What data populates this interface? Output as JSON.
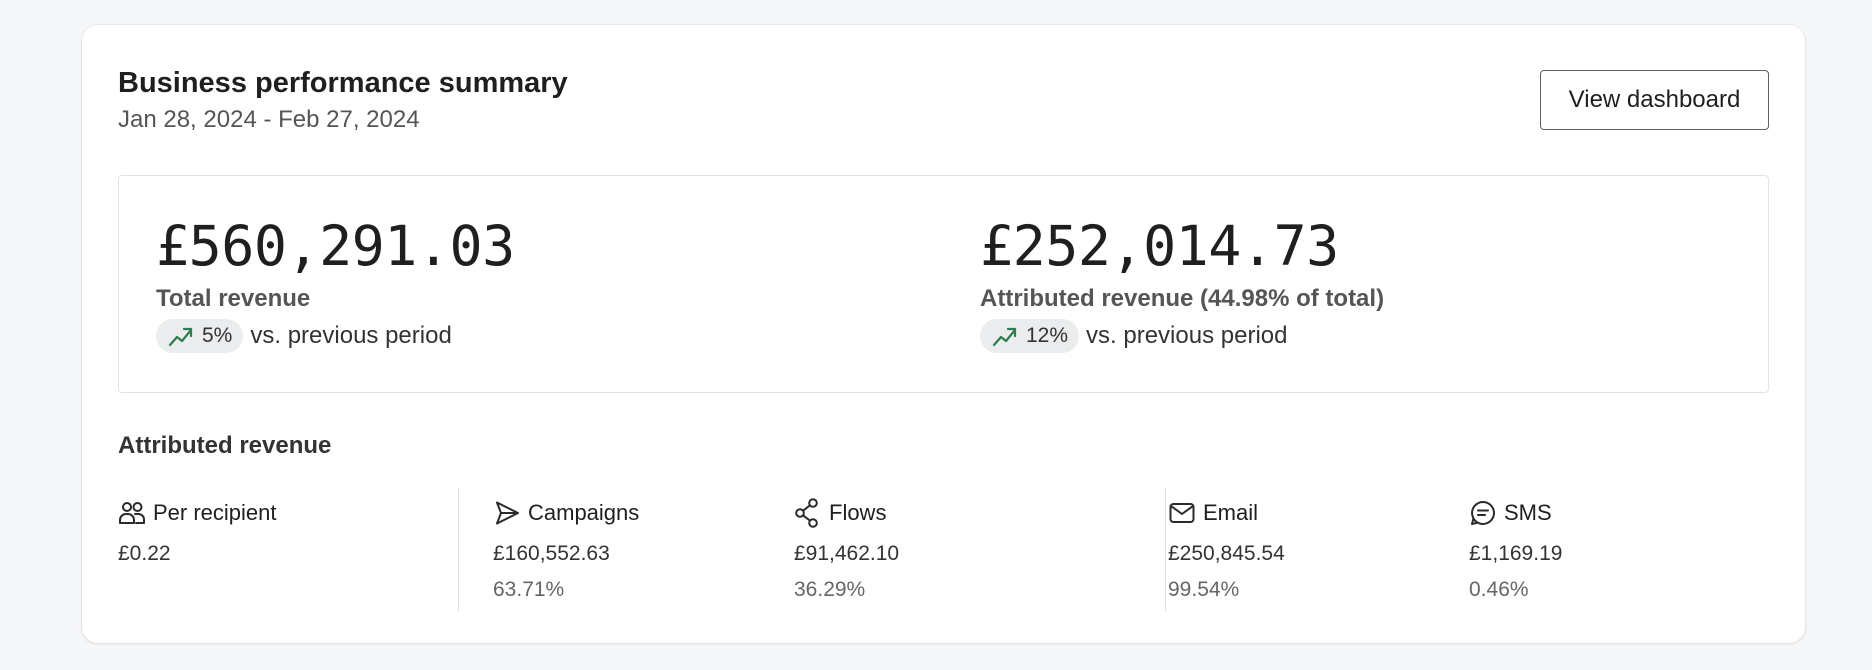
{
  "header": {
    "title": "Business performance summary",
    "date_range": "Jan 28, 2024 - Feb 27, 2024",
    "view_dashboard_label": "View dashboard"
  },
  "kpis": [
    {
      "value": "£560,291.03",
      "label": "Total revenue",
      "trend_icon": "trending-up-icon",
      "trend_value": "5%",
      "trend_text": "vs. previous period"
    },
    {
      "value": "£252,014.73",
      "label": "Attributed revenue (44.98% of total)",
      "trend_icon": "trending-up-icon",
      "trend_value": "12%",
      "trend_text": "vs. previous period"
    }
  ],
  "attributed": {
    "title": "Attributed revenue",
    "metrics": [
      {
        "icon": "users-icon",
        "label": "Per recipient",
        "value": "£0.22",
        "percent": ""
      },
      {
        "icon": "send-icon",
        "label": "Campaigns",
        "value": "£160,552.63",
        "percent": "63.71%"
      },
      {
        "icon": "flows-icon",
        "label": "Flows",
        "value": "£91,462.10",
        "percent": "36.29%"
      },
      {
        "icon": "mail-icon",
        "label": "Email",
        "value": "£250,845.54",
        "percent": "99.54%"
      },
      {
        "icon": "sms-icon",
        "label": "SMS",
        "value": "£1,169.19",
        "percent": "0.46%"
      }
    ]
  },
  "colors": {
    "trend_up": "#2e7d4f",
    "pill_bg": "#ebecee",
    "border": "#e3e3e3"
  }
}
